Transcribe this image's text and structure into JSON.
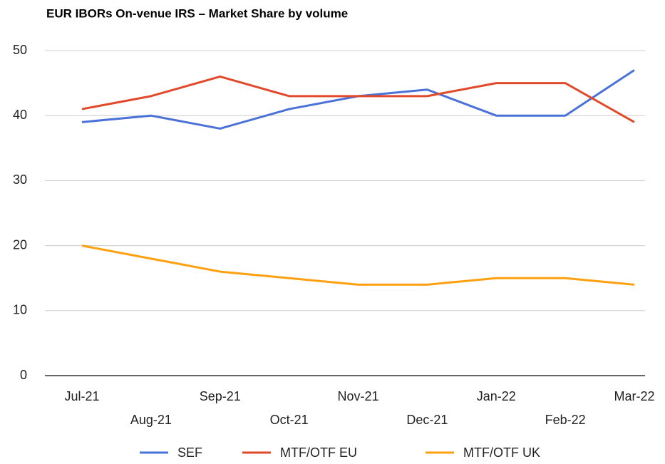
{
  "chart_data": {
    "type": "line",
    "title": "EUR IBORs On-venue IRS – Market Share by volume",
    "categories": [
      "Jul-21",
      "Aug-21",
      "Sep-21",
      "Oct-21",
      "Nov-21",
      "Dec-21",
      "Jan-22",
      "Feb-22",
      "Mar-22"
    ],
    "series": [
      {
        "name": "SEF",
        "color": "#4a72d8",
        "values": [
          39,
          40,
          38,
          41,
          43,
          44,
          40,
          40,
          47
        ]
      },
      {
        "name": "MTF/OTF EU",
        "color": "#e04a2a",
        "values": [
          41,
          43,
          46,
          43,
          43,
          43,
          45,
          45,
          39
        ]
      },
      {
        "name": "MTF/OTF UK",
        "color": "#ffa010",
        "values": [
          20,
          18,
          16,
          15,
          14,
          14,
          15,
          15,
          14
        ]
      }
    ],
    "ylim": [
      0,
      50
    ],
    "yticks": [
      0,
      10,
      20,
      30,
      40,
      50
    ],
    "grid": true,
    "legend": "bottom"
  }
}
